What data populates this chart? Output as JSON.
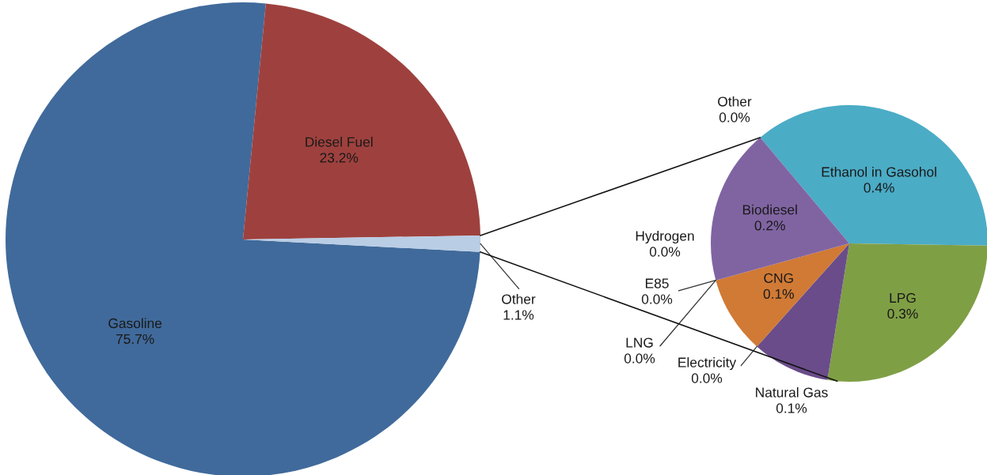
{
  "chart_data": [
    {
      "type": "pie",
      "categories": [
        "Gasoline",
        "Diesel Fuel",
        "Other"
      ],
      "values": [
        75.7,
        23.2,
        1.1
      ],
      "value_labels": [
        "75.7%",
        "23.2%",
        "1.1%"
      ],
      "colors": [
        "#406a9b",
        "#9e413e",
        "#b9cde5"
      ]
    },
    {
      "type": "pie",
      "categories": [
        "Ethanol in Gasohol",
        "LPG",
        "Natural Gas",
        "Electricity",
        "CNG",
        "LNG",
        "E85",
        "Hydrogen",
        "Biodiesel",
        "Other"
      ],
      "values": [
        0.4,
        0.3,
        0.1,
        0.0,
        0.1,
        0.0,
        0.0,
        0.0,
        0.2,
        0.0
      ],
      "value_labels": [
        "0.4%",
        "0.3%",
        "0.1%",
        "0.0%",
        "0.1%",
        "0.0%",
        "0.0%",
        "0.0%",
        "0.2%",
        "0.0%"
      ],
      "colors": [
        "#4bacc6",
        "#7f9f45",
        "#6a4c8a",
        "#2f9fa8",
        "#d07a35",
        "#4a86c5",
        "#c9504d",
        "#9bbb59",
        "#8064a2",
        "#f79646"
      ]
    }
  ]
}
